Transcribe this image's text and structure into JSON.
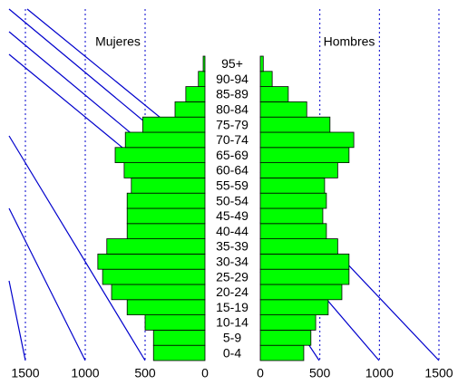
{
  "chart_data": {
    "type": "population_pyramid",
    "categories": [
      "0-4",
      "5-9",
      "10-14",
      "15-19",
      "20-24",
      "25-29",
      "30-34",
      "35-39",
      "40-44",
      "45-49",
      "50-54",
      "55-59",
      "60-64",
      "65-69",
      "70-74",
      "75-79",
      "80-84",
      "85-89",
      "90-94",
      "95+"
    ],
    "series": [
      {
        "name": "Mujeres",
        "color": "#00ff00",
        "values": [
          430,
          430,
          500,
          650,
          780,
          855,
          895,
          820,
          650,
          650,
          650,
          615,
          675,
          750,
          665,
          520,
          250,
          160,
          55,
          15
        ]
      },
      {
        "name": "Hombres",
        "color": "#00ff00",
        "values": [
          365,
          425,
          465,
          570,
          685,
          745,
          745,
          650,
          555,
          525,
          555,
          540,
          650,
          745,
          785,
          585,
          390,
          235,
          100,
          25
        ]
      }
    ],
    "xlim": [
      0,
      1500
    ],
    "xticks": [
      0,
      500,
      1000,
      1500
    ],
    "grid": true,
    "grid_color": "#0000cc"
  }
}
